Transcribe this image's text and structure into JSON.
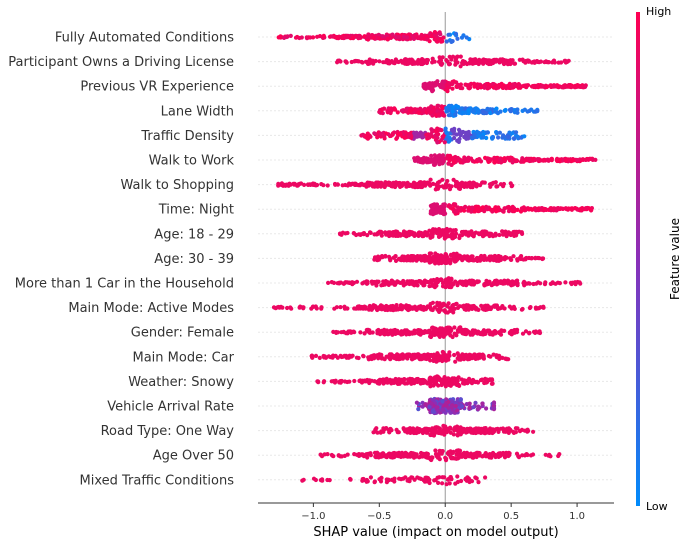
{
  "chart_data": {
    "type": "scatter",
    "title": "",
    "xlabel": "SHAP value (impact on model output)",
    "xlim": [
      -1.42,
      1.28
    ],
    "xticks": [
      -1.0,
      -0.5,
      0.0,
      0.5,
      1.0
    ],
    "xtick_labels": [
      "−1.0",
      "−0.5",
      "0.0",
      "0.5",
      "1.0"
    ],
    "colorbar": {
      "title": "Feature value",
      "high_label": "High",
      "low_label": "Low",
      "high_color": "#ff0052",
      "low_color": "#008bfb"
    },
    "features": [
      {
        "name": "Fully Automated Conditions",
        "min": -1.28,
        "max": 0.22,
        "high_side": "negative",
        "density": "dense-negative"
      },
      {
        "name": "Participant Owns a Driving License",
        "min": -0.83,
        "max": 0.95,
        "high_side": "both",
        "density": "even"
      },
      {
        "name": "Previous VR Experience",
        "min": -0.17,
        "max": 1.07,
        "high_side": "positive",
        "density": "positive"
      },
      {
        "name": "Lane Width",
        "min": -0.52,
        "max": 0.7,
        "high_side": "negative",
        "density": "mixed"
      },
      {
        "name": "Traffic Density",
        "min": -0.67,
        "max": 0.6,
        "high_side": "negative",
        "density": "mixed-wide"
      },
      {
        "name": "Walk to Work",
        "min": -0.24,
        "max": 1.15,
        "high_side": "positive",
        "density": "positive"
      },
      {
        "name": "Walk to Shopping",
        "min": -1.27,
        "max": 0.51,
        "high_side": "both",
        "density": "even"
      },
      {
        "name": "Time: Night",
        "min": -0.11,
        "max": 1.12,
        "high_side": "positive",
        "density": "positive"
      },
      {
        "name": "Age: 18 - 29",
        "min": -0.82,
        "max": 0.59,
        "high_side": "both",
        "density": "even"
      },
      {
        "name": "Age: 30 - 39",
        "min": -0.54,
        "max": 0.75,
        "high_side": "both",
        "density": "even"
      },
      {
        "name": "More than 1 Car in the Household",
        "min": -0.9,
        "max": 1.04,
        "high_side": "both",
        "density": "even"
      },
      {
        "name": "Main Mode: Active Modes",
        "min": -1.3,
        "max": 0.75,
        "high_side": "both",
        "density": "even"
      },
      {
        "name": "Gender: Female",
        "min": -0.86,
        "max": 0.77,
        "high_side": "both",
        "density": "even"
      },
      {
        "name": "Main Mode: Car",
        "min": -1.02,
        "max": 0.48,
        "high_side": "both",
        "density": "even"
      },
      {
        "name": "Weather: Snowy",
        "min": -0.97,
        "max": 0.36,
        "high_side": "both",
        "density": "even"
      },
      {
        "name": "Vehicle Arrival Rate",
        "min": -0.27,
        "max": 0.37,
        "high_side": "mixed",
        "density": "center"
      },
      {
        "name": "Road Type: One Way",
        "min": -0.55,
        "max": 0.67,
        "high_side": "both",
        "density": "even"
      },
      {
        "name": "Age Over 50",
        "min": -0.98,
        "max": 0.9,
        "high_side": "both",
        "density": "even"
      },
      {
        "name": "Mixed Traffic Conditions",
        "min": -1.19,
        "max": 0.32,
        "high_side": "both",
        "density": "sparse"
      }
    ]
  }
}
